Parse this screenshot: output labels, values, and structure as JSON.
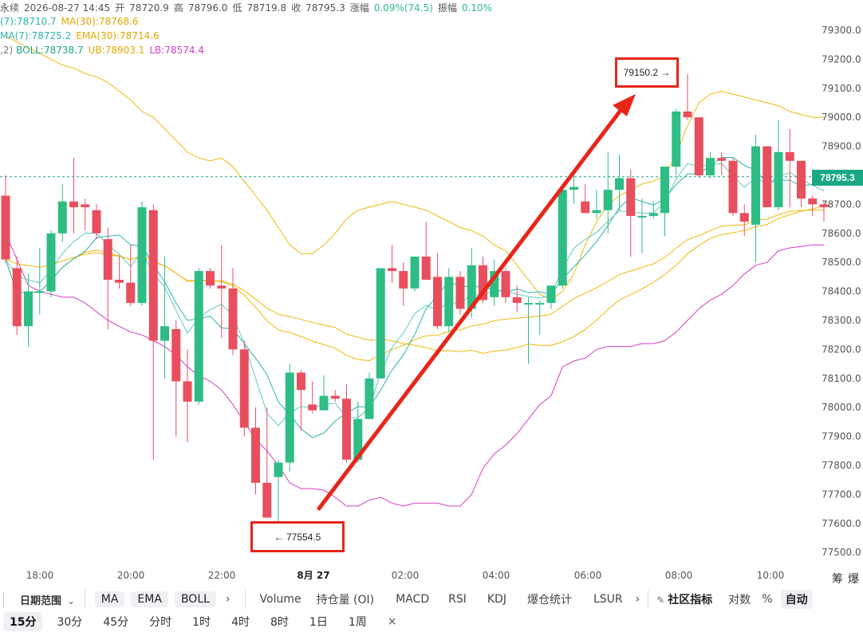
{
  "header": {
    "title_prefix": "永续",
    "datetime": "2026-08-27 14:45",
    "open_label": "开",
    "open": "78720.9",
    "high_label": "高",
    "high": "78796.0",
    "low_label": "低",
    "low": "78719.8",
    "close_label": "收",
    "close": "78795.3",
    "change_label": "涨幅",
    "change": "0.09%(74.5)",
    "amp_label": "振幅",
    "amp": "0.10%"
  },
  "ma_line": {
    "ma7": "(7):78710.7",
    "ma30": "MA(30):78768.6"
  },
  "ema_line": {
    "ema7": "MA(7):78725.2",
    "ema30": "EMA(30):78714.6"
  },
  "boll_line": {
    "prefix": ",2)",
    "boll": "BOLL:78738.7",
    "ub": "UB:78903.1",
    "lb": "LB:78574.4"
  },
  "colors": {
    "up": "#2ebd85",
    "down": "#e84f5e",
    "ma7": "#2bb3b3",
    "ma30": "#f0b90b",
    "ema_line": "#5fc9c2",
    "lb": "#d63cc4",
    "annotation": "#e8251a"
  },
  "price_axis": [
    "79300.0",
    "79200.0",
    "79100.0",
    "79000.0",
    "78900.0",
    "78800.0",
    "78700.0",
    "78600.0",
    "78500.0",
    "78400.0",
    "78300.0",
    "78200.0",
    "78100.0",
    "78000.0",
    "77900.0",
    "77800.0",
    "77700.0",
    "77600.0",
    "77500.0"
  ],
  "current_price": "78795.3",
  "time_axis": [
    "18:00",
    "20:00",
    "22:00",
    "8月 27",
    "02:00",
    "04:00",
    "06:00",
    "08:00",
    "10:00"
  ],
  "annotations": {
    "high_label": "79150.2 →",
    "low_label": "← 77554.5"
  },
  "toolbar": {
    "date_range": "日期范围",
    "indicators_main": [
      "MA",
      "EMA",
      "BOLL"
    ],
    "more": "›",
    "indicators_sub": [
      "Volume",
      "持仓量 (OI)",
      "MACD",
      "RSI",
      "KDJ",
      "爆仓统计",
      "LSUR"
    ],
    "more2": "›",
    "community": "社区指标",
    "log": "对数",
    "pct": "%",
    "auto": "自动",
    "side1": "筹",
    "side2": "爆"
  },
  "timeframes": [
    "15分",
    "30分",
    "45分",
    "分时",
    "1时",
    "4时",
    "8时",
    "1日",
    "1周"
  ],
  "timeframe_active": "15分",
  "close_symbol": "×",
  "chart_data": {
    "type": "candlestick",
    "y_range": [
      77450,
      79350
    ],
    "candles": [
      {
        "o": 78730,
        "h": 78800,
        "l": 78500,
        "c": 78510
      },
      {
        "o": 78480,
        "h": 78520,
        "l": 78250,
        "c": 78280
      },
      {
        "o": 78280,
        "h": 78460,
        "l": 78210,
        "c": 78400
      },
      {
        "o": 78400,
        "h": 78550,
        "l": 78320,
        "c": 78400
      },
      {
        "o": 78400,
        "h": 78610,
        "l": 78380,
        "c": 78600
      },
      {
        "o": 78600,
        "h": 78770,
        "l": 78570,
        "c": 78710
      },
      {
        "o": 78710,
        "h": 78860,
        "l": 78600,
        "c": 78690
      },
      {
        "o": 78700,
        "h": 78720,
        "l": 78610,
        "c": 78690
      },
      {
        "o": 78680,
        "h": 78700,
        "l": 78580,
        "c": 78600
      },
      {
        "o": 78580,
        "h": 78620,
        "l": 78270,
        "c": 78440
      },
      {
        "o": 78440,
        "h": 78520,
        "l": 78410,
        "c": 78430
      },
      {
        "o": 78430,
        "h": 78560,
        "l": 78350,
        "c": 78360
      },
      {
        "o": 78360,
        "h": 78710,
        "l": 78350,
        "c": 78690
      },
      {
        "o": 78680,
        "h": 78700,
        "l": 77820,
        "c": 78230
      },
      {
        "o": 78230,
        "h": 78520,
        "l": 78100,
        "c": 78280
      },
      {
        "o": 78270,
        "h": 78300,
        "l": 77900,
        "c": 78090
      },
      {
        "o": 78090,
        "h": 78200,
        "l": 77880,
        "c": 78020
      },
      {
        "o": 78020,
        "h": 78480,
        "l": 78010,
        "c": 78470
      },
      {
        "o": 78470,
        "h": 78480,
        "l": 78410,
        "c": 78420
      },
      {
        "o": 78420,
        "h": 78560,
        "l": 78240,
        "c": 78410
      },
      {
        "o": 78410,
        "h": 78480,
        "l": 78180,
        "c": 78200
      },
      {
        "o": 78200,
        "h": 78230,
        "l": 77900,
        "c": 77930
      },
      {
        "o": 77930,
        "h": 78000,
        "l": 77700,
        "c": 77740
      },
      {
        "o": 77740,
        "h": 78000,
        "l": 77630,
        "c": 77620
      },
      {
        "o": 77760,
        "h": 77820,
        "l": 77555,
        "c": 77810
      },
      {
        "o": 77810,
        "h": 78150,
        "l": 77780,
        "c": 78120
      },
      {
        "o": 78120,
        "h": 78130,
        "l": 77920,
        "c": 78060
      },
      {
        "o": 78010,
        "h": 78090,
        "l": 77980,
        "c": 77990
      },
      {
        "o": 77990,
        "h": 78110,
        "l": 77990,
        "c": 78040
      },
      {
        "o": 78040,
        "h": 78060,
        "l": 78020,
        "c": 78030
      },
      {
        "o": 78030,
        "h": 78080,
        "l": 77810,
        "c": 77820
      },
      {
        "o": 77820,
        "h": 78020,
        "l": 77810,
        "c": 77960
      },
      {
        "o": 77960,
        "h": 78120,
        "l": 77960,
        "c": 78100
      },
      {
        "o": 78100,
        "h": 78480,
        "l": 78100,
        "c": 78480
      },
      {
        "o": 78480,
        "h": 78560,
        "l": 78430,
        "c": 78470
      },
      {
        "o": 78470,
        "h": 78500,
        "l": 78350,
        "c": 78410
      },
      {
        "o": 78410,
        "h": 78520,
        "l": 78400,
        "c": 78520
      },
      {
        "o": 78520,
        "h": 78640,
        "l": 78440,
        "c": 78440
      },
      {
        "o": 78450,
        "h": 78530,
        "l": 78270,
        "c": 78280
      },
      {
        "o": 78280,
        "h": 78480,
        "l": 78260,
        "c": 78450
      },
      {
        "o": 78450,
        "h": 78470,
        "l": 78320,
        "c": 78340
      },
      {
        "o": 78340,
        "h": 78550,
        "l": 78310,
        "c": 78490
      },
      {
        "o": 78490,
        "h": 78520,
        "l": 78360,
        "c": 78370
      },
      {
        "o": 78380,
        "h": 78510,
        "l": 78350,
        "c": 78470
      },
      {
        "o": 78470,
        "h": 78480,
        "l": 78360,
        "c": 78380
      },
      {
        "o": 78380,
        "h": 78420,
        "l": 78330,
        "c": 78360
      },
      {
        "o": 78360,
        "h": 78380,
        "l": 78150,
        "c": 78360
      },
      {
        "o": 78360,
        "h": 78370,
        "l": 78250,
        "c": 78360
      },
      {
        "o": 78360,
        "h": 78420,
        "l": 78340,
        "c": 78420
      },
      {
        "o": 78420,
        "h": 78760,
        "l": 78410,
        "c": 78750
      },
      {
        "o": 78750,
        "h": 78820,
        "l": 78700,
        "c": 78760
      },
      {
        "o": 78710,
        "h": 78770,
        "l": 78670,
        "c": 78670
      },
      {
        "o": 78670,
        "h": 78750,
        "l": 78650,
        "c": 78680
      },
      {
        "o": 78680,
        "h": 78880,
        "l": 78600,
        "c": 78750
      },
      {
        "o": 78750,
        "h": 78870,
        "l": 78680,
        "c": 78790
      },
      {
        "o": 78790,
        "h": 78820,
        "l": 78520,
        "c": 78660
      },
      {
        "o": 78660,
        "h": 78720,
        "l": 78530,
        "c": 78660
      },
      {
        "o": 78660,
        "h": 78710,
        "l": 78650,
        "c": 78670
      },
      {
        "o": 78670,
        "h": 78830,
        "l": 78590,
        "c": 78830
      },
      {
        "o": 78830,
        "h": 79030,
        "l": 78800,
        "c": 79020
      },
      {
        "o": 79020,
        "h": 79150,
        "l": 78990,
        "c": 79000
      },
      {
        "o": 79000,
        "h": 79000,
        "l": 78790,
        "c": 78800
      },
      {
        "o": 78800,
        "h": 78880,
        "l": 78790,
        "c": 78860
      },
      {
        "o": 78860,
        "h": 78880,
        "l": 78800,
        "c": 78850
      },
      {
        "o": 78850,
        "h": 78860,
        "l": 78660,
        "c": 78670
      },
      {
        "o": 78670,
        "h": 78700,
        "l": 78590,
        "c": 78640
      },
      {
        "o": 78630,
        "h": 78940,
        "l": 78500,
        "c": 78900
      },
      {
        "o": 78900,
        "h": 78900,
        "l": 78690,
        "c": 78690
      },
      {
        "o": 78690,
        "h": 78990,
        "l": 78680,
        "c": 78880
      },
      {
        "o": 78880,
        "h": 78960,
        "l": 78690,
        "c": 78850
      },
      {
        "o": 78850,
        "h": 78850,
        "l": 78690,
        "c": 78720
      },
      {
        "o": 78720,
        "h": 78730,
        "l": 78660,
        "c": 78700
      },
      {
        "o": 78700,
        "h": 78710,
        "l": 78640,
        "c": 78690
      }
    ],
    "ub": [
      79280,
      79260,
      79240,
      79220,
      79200,
      79180,
      79170,
      79150,
      79140,
      79120,
      79090,
      79060,
      79020,
      79000,
      78960,
      78920,
      78880,
      78860,
      78850,
      78860,
      78830,
      78780,
      78730,
      78680,
      78620,
      78560,
      78530,
      78530,
      78560,
      78600,
      78650,
      78680,
      78690,
      78700,
      78710,
      78700,
      78690,
      78680,
      78660,
      78640,
      78620,
      78610,
      78590,
      78560,
      78540,
      78490,
      78440,
      78390,
      78370,
      78400,
      78460,
      78560,
      78640,
      78700,
      78730,
      78750,
      78770,
      78780,
      78800,
      78870,
      78970,
      79050,
      79080,
      79090,
      79080,
      79070,
      79060,
      79050,
      79040,
      79020,
      79010,
      79000,
      79000
    ],
    "lb": [
      78600,
      78510,
      78420,
      78400,
      78390,
      78380,
      78380,
      78360,
      78330,
      78300,
      78280,
      78260,
      78250,
      78230,
      78210,
      78180,
      78140,
      78110,
      78090,
      78060,
      78010,
      77950,
      77890,
      77850,
      77800,
      77740,
      77720,
      77720,
      77715,
      77690,
      77660,
      77660,
      77680,
      77690,
      77670,
      77660,
      77670,
      77670,
      77670,
      77660,
      77660,
      77700,
      77790,
      77840,
      77870,
      77910,
      77960,
      78010,
      78040,
      78140,
      78160,
      78170,
      78200,
      78210,
      78210,
      78210,
      78220,
      78220,
      78230,
      78260,
      78300,
      78340,
      78370,
      78390,
      78420,
      78460,
      78490,
      78500,
      78540,
      78550,
      78555,
      78560,
      78560
    ]
  }
}
